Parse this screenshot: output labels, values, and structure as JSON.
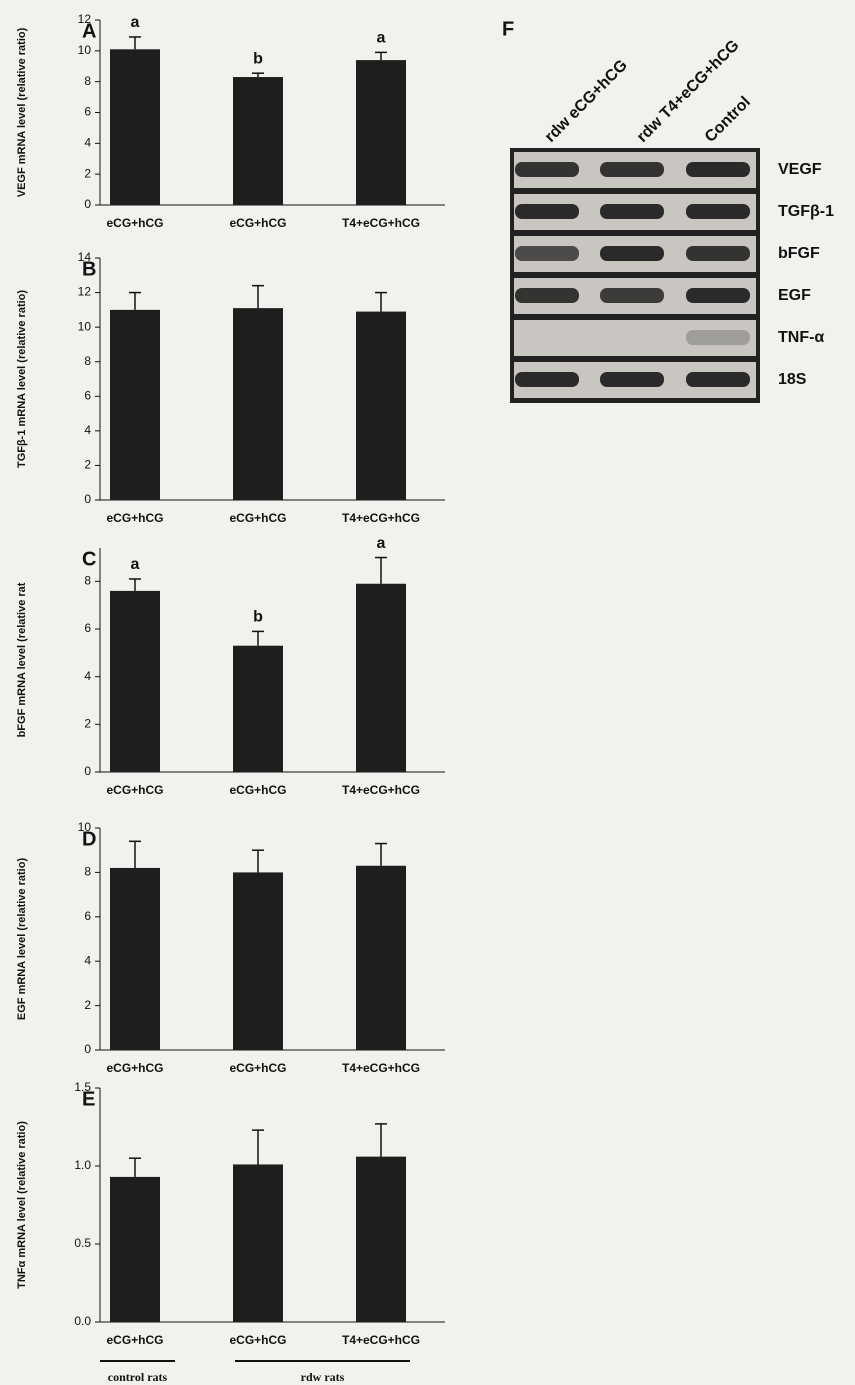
{
  "chart_data": [
    {
      "type": "bar",
      "label": "A",
      "ylabel": "VEGF mRNA level  (relative ratio)",
      "categories": [
        "eCG+hCG",
        "eCG+hCG",
        "T4+eCG+hCG"
      ],
      "values": [
        10.1,
        8.3,
        9.4
      ],
      "errors": [
        0.8,
        0.25,
        0.5
      ],
      "annotations": [
        "a",
        "b",
        "a"
      ],
      "color": "#1e1e1e",
      "ylim": [
        0,
        12
      ],
      "yticks": [
        0,
        2,
        4,
        6,
        8,
        10,
        12
      ]
    },
    {
      "type": "bar",
      "label": "B",
      "ylabel": "TGFβ-1 mRNA level  (relative ratio)",
      "categories": [
        "eCG+hCG",
        "eCG+hCG",
        "T4+eCG+hCG"
      ],
      "values": [
        11.0,
        11.1,
        10.9
      ],
      "errors": [
        1.0,
        1.3,
        1.1
      ],
      "color": "#1e1e1e",
      "ylim": [
        0,
        14
      ],
      "yticks": [
        0,
        2,
        4,
        6,
        8,
        10,
        12,
        14
      ]
    },
    {
      "type": "bar",
      "label": "C",
      "ylabel": "bFGF mRNA level  (relative rat",
      "categories": [
        "eCG+hCG",
        "eCG+hCG",
        "T4+eCG+hCG"
      ],
      "values": [
        7.6,
        5.3,
        7.9
      ],
      "errors": [
        0.5,
        0.6,
        1.1
      ],
      "annotations": [
        "a",
        "b",
        "a"
      ],
      "color": "#1e1e1e",
      "ylim": [
        0,
        9.4
      ],
      "yticks": [
        0,
        2,
        4,
        6,
        8
      ]
    },
    {
      "type": "bar",
      "label": "D",
      "ylabel": "EGF mRNA level  (relative ratio)",
      "categories": [
        "eCG+hCG",
        "eCG+hCG",
        "T4+eCG+hCG"
      ],
      "values": [
        8.2,
        8.0,
        8.3
      ],
      "errors": [
        1.2,
        1.0,
        1.0
      ],
      "color": "#1e1e1e",
      "ylim": [
        0,
        10
      ],
      "yticks": [
        0,
        2,
        4,
        6,
        8,
        10
      ]
    },
    {
      "type": "bar",
      "label": "E",
      "ylabel": "TNFα mRNA level (relative ratio)",
      "categories": [
        "eCG+hCG",
        "eCG+hCG",
        "T4+eCG+hCG"
      ],
      "values": [
        0.93,
        1.01,
        1.06
      ],
      "errors": [
        0.12,
        0.22,
        0.21
      ],
      "color": "#1e1e1e",
      "ylim": [
        0,
        1.5
      ],
      "yticks": [
        {
          "value": 0,
          "label": "0.0"
        },
        0.5,
        {
          "value": 1,
          "label": "1.0"
        },
        1.5
      ],
      "groups": [
        "control rats",
        "rdw rats"
      ]
    }
  ],
  "gel": {
    "label": "F",
    "lanes": [
      "rdw eCG+hCG",
      "rdw T4+eCG+hCG",
      "Control"
    ],
    "rows": [
      "VEGF",
      "TGFβ-1",
      "bFGF",
      "EGF",
      "TNF-α",
      "18S"
    ]
  }
}
